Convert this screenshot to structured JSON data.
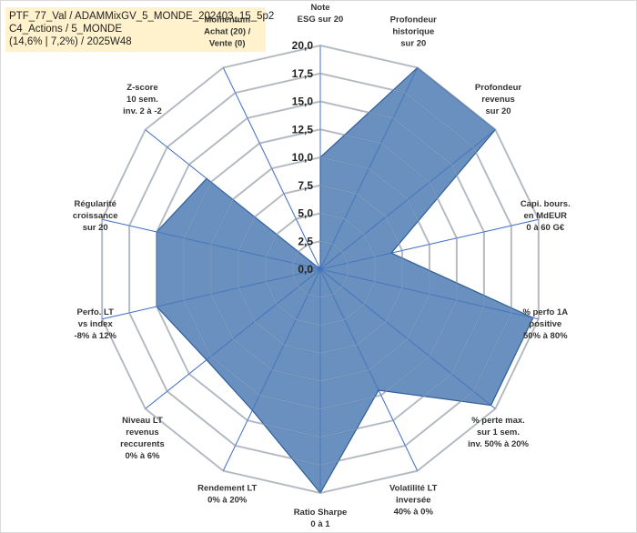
{
  "header": {
    "line1": "PTF_77_Val / ADAMMixGV_5_MONDE_202403_15_5p2",
    "line2": "C4_Actions / 5_MONDE",
    "line3": "(14,6% | 7,2%) / 2025W48"
  },
  "chart_data": {
    "type": "radar",
    "title": "",
    "rlim": [
      0,
      20
    ],
    "ticks": [
      "0,0",
      "2,5",
      "5,0",
      "7,5",
      "10,0",
      "12,5",
      "15,0",
      "17,5",
      "20,0"
    ],
    "tick_values": [
      0,
      2.5,
      5,
      7.5,
      10,
      12.5,
      15,
      17.5,
      20
    ],
    "axes": [
      {
        "label": [
          "Note",
          "ESG sur 20"
        ],
        "value": 10.0
      },
      {
        "label": [
          "Profondeur",
          "historique",
          "sur 20"
        ],
        "value": 20.0
      },
      {
        "label": [
          "Profondeur",
          "revenus",
          "sur 20"
        ],
        "value": 20.0
      },
      {
        "label": [
          "Capi. bours.",
          "en MdEUR",
          "0 à 60 G€"
        ],
        "value": 6.5
      },
      {
        "label": [
          "% perfo 1A",
          "positive",
          "50% à 80%"
        ],
        "value": 19.5
      },
      {
        "label": [
          "% perte max.",
          "sur 1 sem.",
          "inv. 50% à 20%"
        ],
        "value": 19.5
      },
      {
        "label": [
          "Volatilité LT",
          "inversée",
          "40% à 0%"
        ],
        "value": 12.0
      },
      {
        "label": [
          "Ratio Sharpe",
          "0 à 1"
        ],
        "value": 20.0
      },
      {
        "label": [
          "Rendement LT",
          "0% à 20%"
        ],
        "value": 14.0
      },
      {
        "label": [
          "Niveau LT",
          "revenus",
          "reccurents",
          "0% à 6%"
        ],
        "value": 13.0
      },
      {
        "label": [
          "Perfo. LT",
          "vs index",
          "-8% à 12%"
        ],
        "value": 15.0
      },
      {
        "label": [
          "Régularité",
          "croissance",
          "sur 20"
        ],
        "value": 15.0
      },
      {
        "label": [
          "Z-score",
          "10 sem.",
          "inv. 2 à -2"
        ],
        "value": 13.0
      },
      {
        "label": [
          "Momentum",
          "Achat (20) /",
          "Vente (0)"
        ],
        "value": 0.0
      }
    ],
    "grid": true,
    "legend": "none",
    "colors": {
      "fill": "#4f7cb3",
      "stroke": "#2e5d9a",
      "grid": "#bfbfbf",
      "spoke": "#4472c4"
    }
  }
}
